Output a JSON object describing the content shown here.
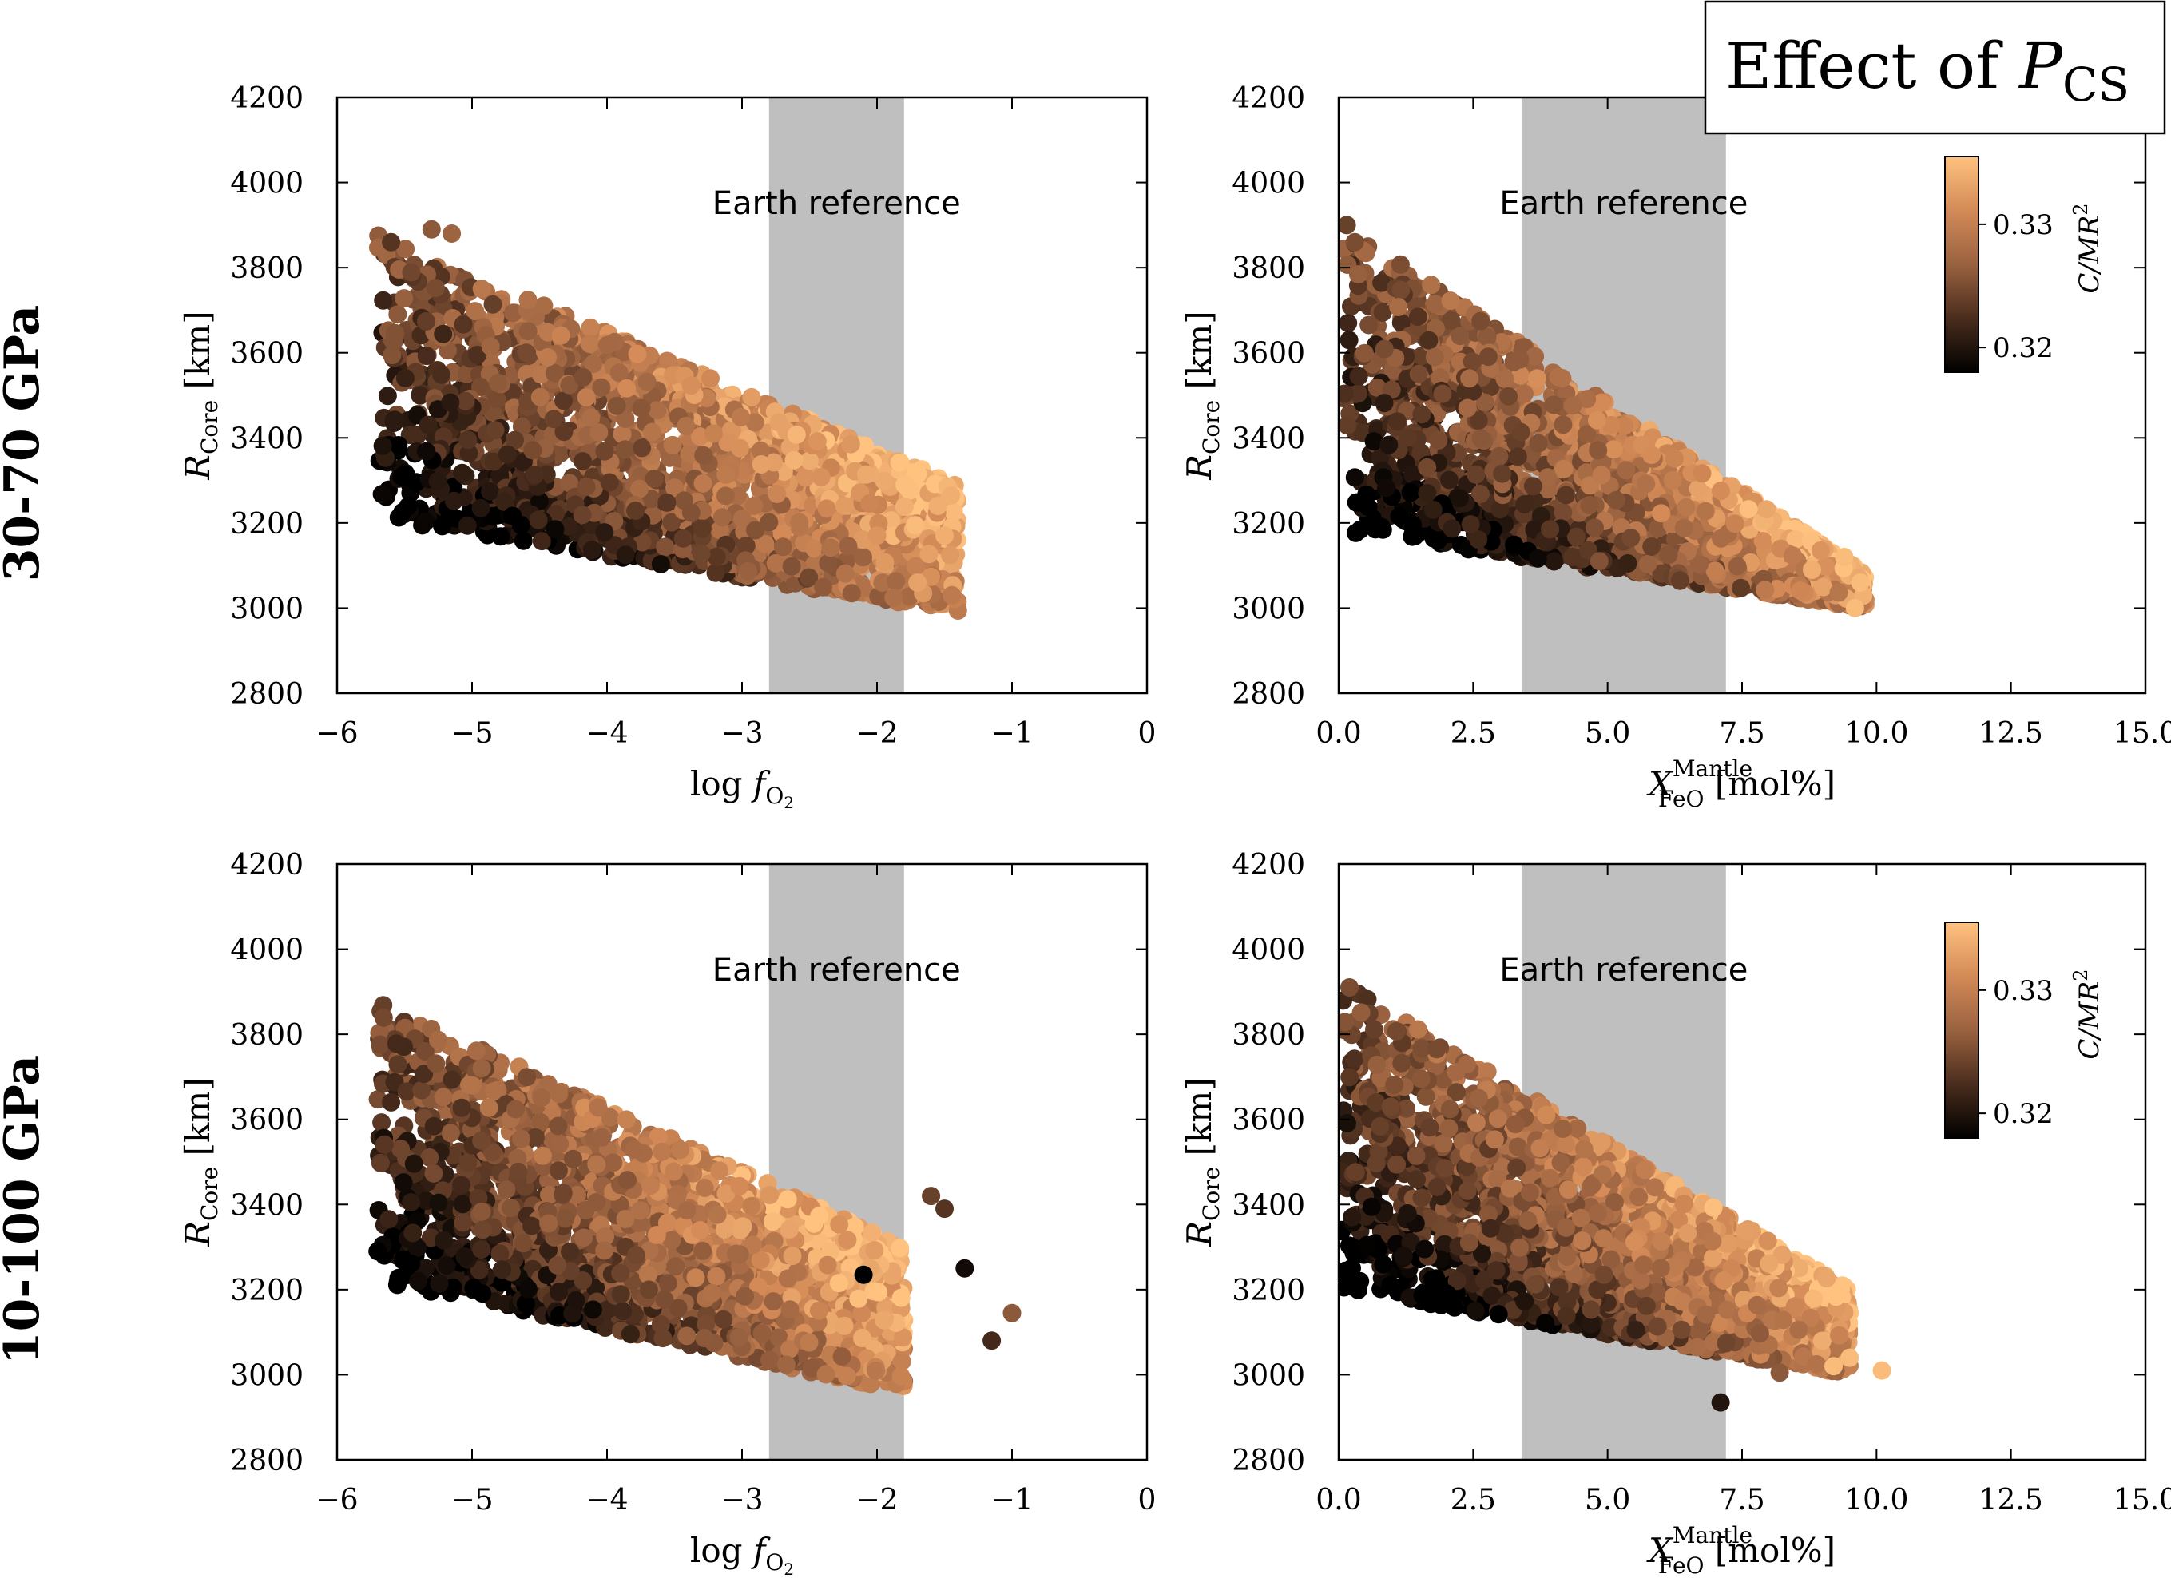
{
  "figure_title": {
    "text": "Effect of ",
    "sym": "P",
    "sub": "CS"
  },
  "colormap": [
    "#000000",
    "#4a2d1d",
    "#9a6240",
    "#d38a57",
    "#ffc27f"
  ],
  "chart_data": [
    {
      "id": "p00",
      "type": "scatter",
      "row_label": "30-70 GPa",
      "xlabel": {
        "pre": "log ",
        "sym": "f",
        "sub": "O",
        "subsub": "2",
        "post": ""
      },
      "ylabel": {
        "sym": "R",
        "sub": "Core",
        "post": " [km]"
      },
      "xlim": [
        -6,
        0
      ],
      "ylim": [
        2800,
        4200
      ],
      "xticks": [
        -6,
        -5,
        -4,
        -3,
        -2,
        -1,
        0
      ],
      "xtick_labels": [
        "−6",
        "−5",
        "−4",
        "−3",
        "−2",
        "−1",
        "0"
      ],
      "yticks": [
        2800,
        3000,
        3200,
        3400,
        3600,
        3800,
        4000,
        4200
      ],
      "ytick_labels": [
        "2800",
        "3000",
        "3200",
        "3400",
        "3600",
        "3800",
        "4000",
        "4200"
      ],
      "band": {
        "x0": -2.8,
        "x1": -1.8,
        "label": "Earth reference"
      },
      "colorbar": null,
      "cloud": {
        "x_range": [
          -5.7,
          -1.4
        ],
        "upper_start": 3880,
        "upper_end": 3290,
        "lower_start": 3210,
        "lower_end": 2990,
        "n": 2200
      },
      "series": [
        {
          "name": "highlighted points",
          "x": [
            -5.6,
            -5.3,
            -5.15,
            -2.0,
            -1.55,
            -1.45,
            -1.5,
            -1.7
          ],
          "y": [
            3860,
            3890,
            3880,
            3170,
            3240,
            3265,
            3170,
            3060
          ],
          "c": [
            0.323,
            0.326,
            0.327,
            0.332,
            0.334,
            0.334,
            0.334,
            0.333
          ]
        }
      ]
    },
    {
      "id": "p01",
      "type": "scatter",
      "row_label": "30-70 GPa",
      "xlabel": {
        "sym": "X",
        "sup": "Mantle",
        "sub": "FeO",
        "post": " [mol%]"
      },
      "ylabel": {
        "sym": "R",
        "sub": "Core",
        "post": " [km]"
      },
      "xlim": [
        0,
        15
      ],
      "ylim": [
        2800,
        4200
      ],
      "xticks": [
        0,
        2.5,
        5,
        7.5,
        10,
        12.5,
        15
      ],
      "xtick_labels": [
        "0.0",
        "2.5",
        "5.0",
        "7.5",
        "10.0",
        "12.5",
        "15.0"
      ],
      "yticks": [
        2800,
        3000,
        3200,
        3400,
        3600,
        3800,
        4000,
        4200
      ],
      "ytick_labels": [
        "2800",
        "3000",
        "3200",
        "3400",
        "3600",
        "3800",
        "4000",
        "4200"
      ],
      "band": {
        "x0": 3.4,
        "x1": 7.2,
        "label": "Earth reference"
      },
      "colorbar": {
        "ticks": [
          0.32,
          0.33
        ],
        "tick_labels": [
          "0.32",
          "0.33"
        ],
        "label_sym": "C/MR",
        "label_sup": "2",
        "vmin": 0.318,
        "vmax": 0.3355
      },
      "cloud": {
        "x_range": [
          0.05,
          9.8
        ],
        "upper_start": 3900,
        "upper_end": 3080,
        "lower_start": 3180,
        "lower_end": 3000,
        "n": 2200
      },
      "series": [
        {
          "name": "highlighted points",
          "x": [
            0.15,
            0.3,
            9.4,
            9.7,
            8.8,
            9.6
          ],
          "y": [
            3900,
            3860,
            3120,
            3060,
            3090,
            3000
          ],
          "c": [
            0.324,
            0.325,
            0.335,
            0.335,
            0.334,
            0.335
          ]
        }
      ]
    },
    {
      "id": "p10",
      "type": "scatter",
      "row_label": "10-100 GPa",
      "xlabel": {
        "pre": "log ",
        "sym": "f",
        "sub": "O",
        "subsub": "2",
        "post": ""
      },
      "ylabel": {
        "sym": "R",
        "sub": "Core",
        "post": " [km]"
      },
      "xlim": [
        -6,
        0
      ],
      "ylim": [
        2800,
        4200
      ],
      "xticks": [
        -6,
        -5,
        -4,
        -3,
        -2,
        -1,
        0
      ],
      "xtick_labels": [
        "−6",
        "−5",
        "−4",
        "−3",
        "−2",
        "−1",
        "0"
      ],
      "yticks": [
        2800,
        3000,
        3200,
        3400,
        3600,
        3800,
        4000,
        4200
      ],
      "ytick_labels": [
        "2800",
        "3000",
        "3200",
        "3400",
        "3600",
        "3800",
        "4000",
        "4200"
      ],
      "band": {
        "x0": -2.8,
        "x1": -1.8,
        "label": "Earth reference"
      },
      "colorbar": null,
      "cloud": {
        "x_range": [
          -5.7,
          -1.8
        ],
        "upper_start": 3880,
        "upper_end": 3300,
        "lower_start": 3220,
        "lower_end": 2960,
        "n": 2300
      },
      "series": [
        {
          "name": "highlighted points",
          "x": [
            -5.7,
            -5.6,
            -5.4,
            -1.6,
            -1.5,
            -1.35,
            -1.15,
            -1.0,
            -2.1
          ],
          "y": [
            3290,
            3640,
            3220,
            3420,
            3390,
            3250,
            3080,
            3145,
            3235
          ],
          "c": [
            0.318,
            0.322,
            0.319,
            0.324,
            0.323,
            0.319,
            0.322,
            0.326,
            0.318
          ]
        }
      ]
    },
    {
      "id": "p11",
      "type": "scatter",
      "row_label": "10-100 GPa",
      "xlabel": {
        "sym": "X",
        "sup": "Mantle",
        "sub": "FeO",
        "post": " [mol%]"
      },
      "ylabel": {
        "sym": "R",
        "sub": "Core",
        "post": " [km]"
      },
      "xlim": [
        0,
        15
      ],
      "ylim": [
        2800,
        4200
      ],
      "xticks": [
        0,
        2.5,
        5,
        7.5,
        10,
        12.5,
        15
      ],
      "xtick_labels": [
        "0.0",
        "2.5",
        "5.0",
        "7.5",
        "10.0",
        "12.5",
        "15.0"
      ],
      "yticks": [
        2800,
        3000,
        3200,
        3400,
        3600,
        3800,
        4000,
        4200
      ],
      "ytick_labels": [
        "2800",
        "3000",
        "3200",
        "3400",
        "3600",
        "3800",
        "4000",
        "4200"
      ],
      "band": {
        "x0": 3.4,
        "x1": 7.2,
        "label": "Earth reference"
      },
      "colorbar": {
        "ticks": [
          0.32,
          0.33
        ],
        "tick_labels": [
          "0.32",
          "0.33"
        ],
        "label_sym": "C/MR",
        "label_sup": "2",
        "vmin": 0.318,
        "vmax": 0.3355
      },
      "cloud": {
        "x_range": [
          0.05,
          9.5
        ],
        "upper_start": 3920,
        "upper_end": 3200,
        "lower_start": 3200,
        "lower_end": 3000,
        "n": 2300
      },
      "series": [
        {
          "name": "highlighted points",
          "x": [
            0.2,
            10.1,
            9.5,
            9.2,
            8.2,
            7.1
          ],
          "y": [
            3910,
            3010,
            3040,
            3020,
            3005,
            2935
          ],
          "c": [
            0.325,
            0.335,
            0.335,
            0.335,
            0.326,
            0.32
          ]
        }
      ]
    }
  ]
}
